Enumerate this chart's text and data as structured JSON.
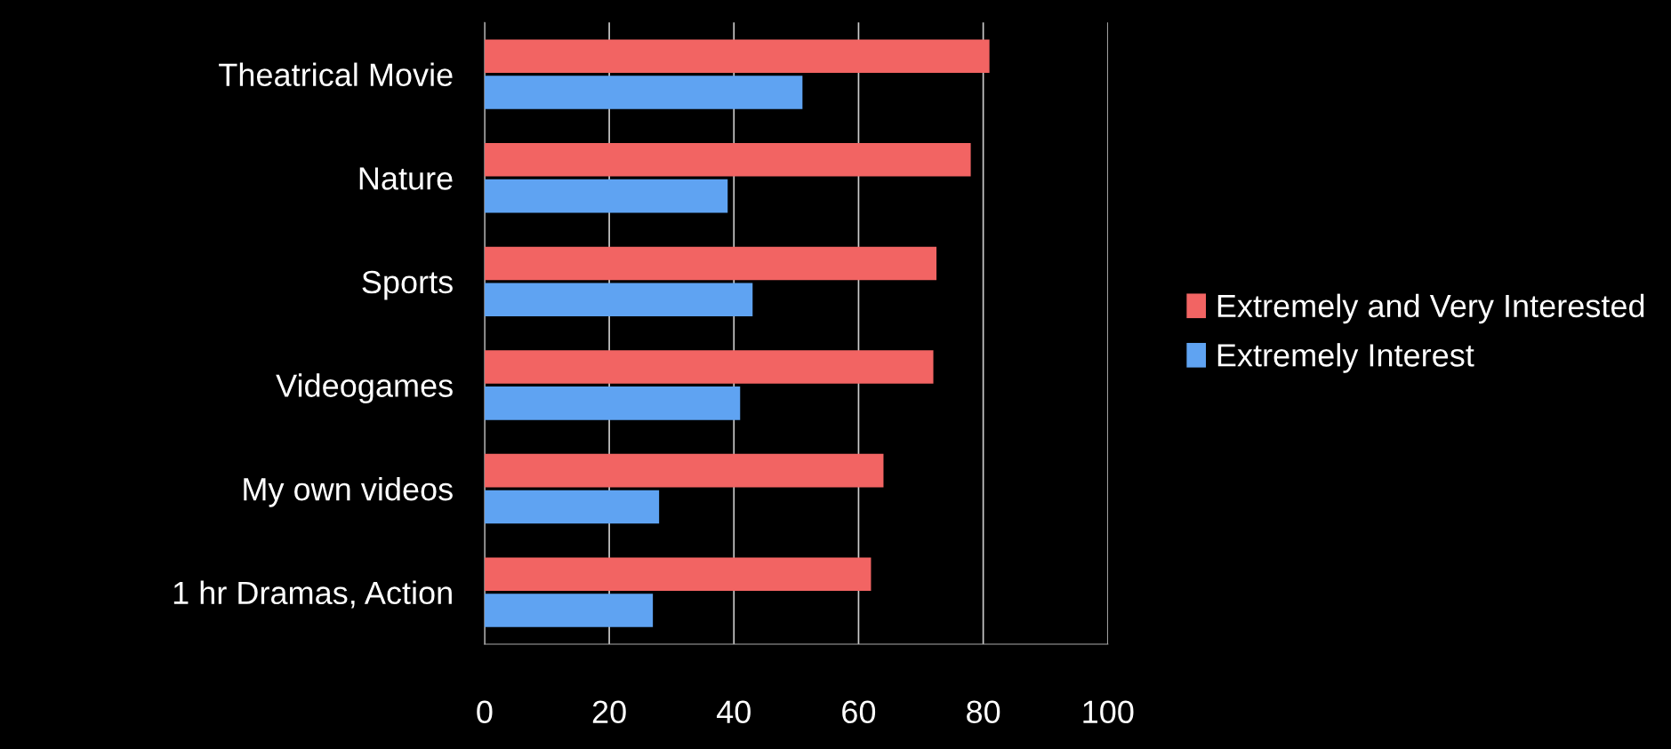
{
  "chart_data": {
    "type": "bar",
    "orientation": "horizontal",
    "categories": [
      "Theatrical Movie",
      "Nature",
      "Sports",
      "Videogames",
      "My own videos",
      "1 hr Dramas, Action"
    ],
    "series": [
      {
        "name": "Extremely and Very Interested",
        "color": "#f26463",
        "values": [
          81,
          78,
          72.5,
          72,
          64,
          62
        ]
      },
      {
        "name": "Extremely Interest",
        "color": "#5fa3f2",
        "values": [
          51,
          39,
          43,
          41,
          28,
          27
        ]
      }
    ],
    "xlim": [
      0,
      100
    ],
    "xticks": [
      0,
      20,
      40,
      60,
      80,
      100
    ],
    "grid": "x",
    "legend": "right"
  }
}
